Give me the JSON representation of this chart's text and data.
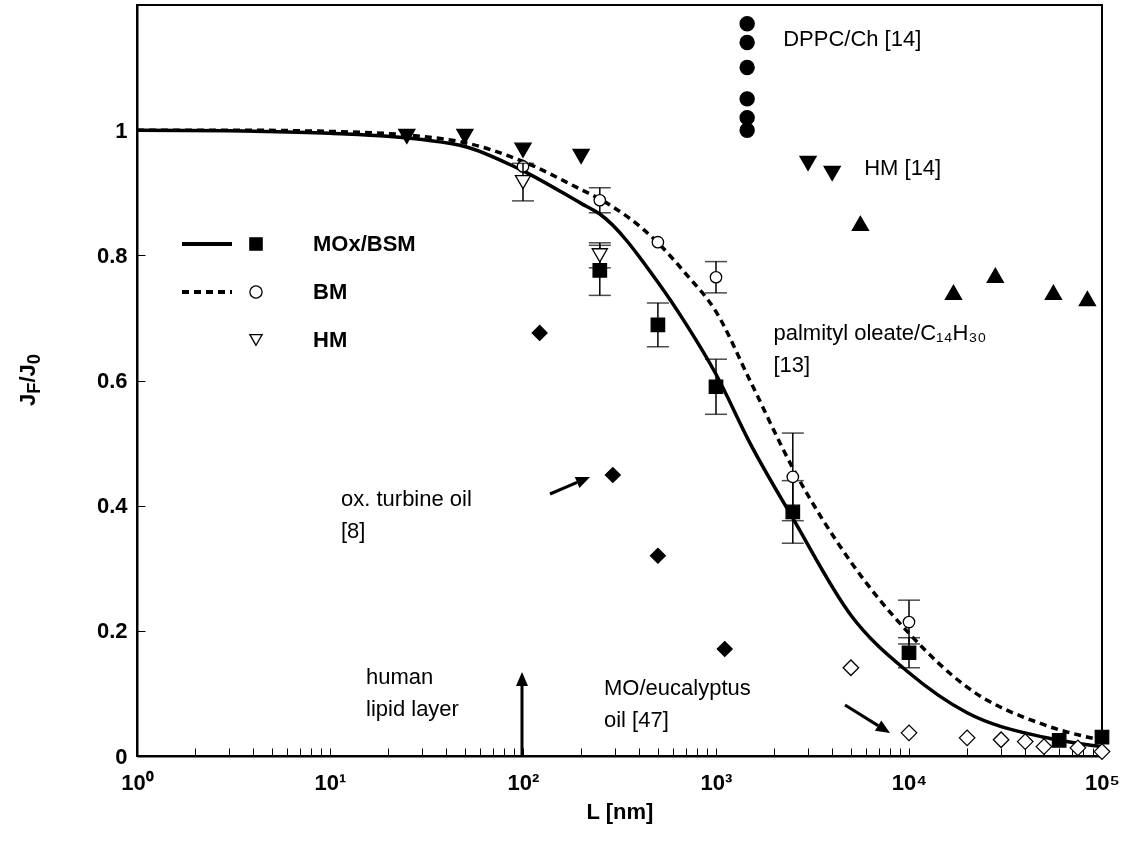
{
  "chart_data": {
    "type": "scatter",
    "xlabel": "L [nm]",
    "ylabel": "J$_{F}$/J$_{0}$",
    "log": "x",
    "xlim": [
      1,
      100000
    ],
    "ylim": [
      0,
      1.2
    ],
    "xticks": [
      {
        "value": 1,
        "label": "10⁰"
      },
      {
        "value": 2,
        "label": null
      },
      {
        "value": 3,
        "label": null
      },
      {
        "value": 4,
        "label": null
      },
      {
        "value": 5,
        "label": null
      },
      {
        "value": 6,
        "label": null
      },
      {
        "value": 7,
        "label": null
      },
      {
        "value": 8,
        "label": null
      },
      {
        "value": 9,
        "label": null
      },
      {
        "value": 10,
        "label": "10¹"
      },
      {
        "value": 20,
        "label": null
      },
      {
        "value": 30,
        "label": null
      },
      {
        "value": 40,
        "label": null
      },
      {
        "value": 50,
        "label": null
      },
      {
        "value": 60,
        "label": null
      },
      {
        "value": 70,
        "label": null
      },
      {
        "value": 80,
        "label": null
      },
      {
        "value": 90,
        "label": null
      },
      {
        "value": 100,
        "label": "10²"
      },
      {
        "value": 200,
        "label": null
      },
      {
        "value": 300,
        "label": null
      },
      {
        "value": 400,
        "label": null
      },
      {
        "value": 500,
        "label": null
      },
      {
        "value": 600,
        "label": null
      },
      {
        "value": 700,
        "label": null
      },
      {
        "value": 800,
        "label": null
      },
      {
        "value": 900,
        "label": null
      },
      {
        "value": 1000,
        "label": "10³"
      },
      {
        "value": 2000,
        "label": null
      },
      {
        "value": 3000,
        "label": null
      },
      {
        "value": 4000,
        "label": null
      },
      {
        "value": 5000,
        "label": null
      },
      {
        "value": 6000,
        "label": null
      },
      {
        "value": 7000,
        "label": null
      },
      {
        "value": 8000,
        "label": null
      },
      {
        "value": 9000,
        "label": null
      },
      {
        "value": 10000,
        "label": "10⁴"
      },
      {
        "value": 20000,
        "label": null
      },
      {
        "value": 30000,
        "label": null
      },
      {
        "value": 40000,
        "label": null
      },
      {
        "value": 50000,
        "label": null
      },
      {
        "value": 60000,
        "label": null
      },
      {
        "value": 70000,
        "label": null
      },
      {
        "value": 80000,
        "label": null
      },
      {
        "value": 90000,
        "label": null
      },
      {
        "value": 100000,
        "label": "10⁵"
      }
    ],
    "yticks": [
      0,
      0.2,
      0.4,
      0.6,
      0.8,
      1
    ],
    "grid": false,
    "legend": "top left",
    "series": [
      {
        "type": "line",
        "line_style": "solid",
        "color": "#000000",
        "x": [
          1,
          3,
          10,
          30,
          50,
          100,
          200,
          250,
          500,
          700,
          1000,
          1500,
          2500,
          5000,
          10000,
          20000,
          50000,
          100000
        ],
        "values": [
          1,
          0.999,
          0.995,
          0.985,
          0.974,
          0.935,
          0.883,
          0.866,
          0.757,
          0.69,
          0.61,
          0.5,
          0.38,
          0.225,
          0.133,
          0.069,
          0.03,
          0.015
        ]
      },
      {
        "type": "line",
        "line_style": "dashed",
        "color": "#000000",
        "x": [
          1,
          3,
          10,
          30,
          50,
          100,
          200,
          250,
          500,
          700,
          1000,
          1500,
          2500,
          5000,
          10000,
          20000,
          50000,
          100000
        ],
        "values": [
          1,
          1,
          0.998,
          0.99,
          0.98,
          0.95,
          0.905,
          0.89,
          0.82,
          0.77,
          0.71,
          0.6,
          0.46,
          0.31,
          0.196,
          0.11,
          0.05,
          0.025
        ]
      },
      {
        "name": "MOx/BSM",
        "marker": "square",
        "color": "#000000",
        "x": [
          250,
          500,
          1000,
          2500,
          10000,
          60000,
          100000
        ],
        "values": [
          0.776,
          0.689,
          0.59,
          0.39,
          0.165,
          0.025,
          0.03
        ],
        "errors": [
          0.04,
          0.035,
          0.044,
          0.05,
          0.024,
          null,
          null
        ]
      },
      {
        "name": "BM",
        "marker": "circle-open",
        "color": "#000000",
        "x": [
          100,
          250,
          500,
          1000,
          2500,
          10000
        ],
        "values": [
          0.942,
          0.888,
          0.821,
          0.765,
          0.446,
          0.214
        ],
        "errors": [
          null,
          0.02,
          null,
          0.025,
          0.07,
          0.035
        ]
      },
      {
        "name": "HM",
        "marker": "triangle-down-open",
        "color": "#000000",
        "x": [
          100,
          250
        ],
        "values": [
          0.917,
          0.8
        ],
        "errors": [
          0.03,
          0.02
        ]
      },
      {
        "marker": "circle",
        "color": "#000000",
        "x": [
          1450,
          1450,
          1450,
          1450,
          1450,
          1450
        ],
        "values": [
          1.17,
          1.14,
          1.1,
          1.05,
          1.02,
          1.0
        ]
      },
      {
        "marker": "triangle-down",
        "color": "#000000",
        "x": [
          25,
          50,
          100,
          200,
          3000,
          4000
        ],
        "values": [
          0.99,
          0.99,
          0.968,
          0.958,
          0.947,
          0.931
        ]
      },
      {
        "marker": "triangle",
        "color": "#000000",
        "x": [
          5600,
          17000,
          28000,
          56000,
          84000
        ],
        "values": [
          0.851,
          0.741,
          0.768,
          0.741,
          0.731
        ]
      },
      {
        "marker": "diamond",
        "color": "#000000",
        "x": [
          122,
          292,
          500,
          1110
        ],
        "values": [
          0.676,
          0.449,
          0.32,
          0.171
        ]
      },
      {
        "marker": "diamond-open",
        "color": "#000000",
        "x": [
          5000,
          10000,
          20000,
          30000,
          40000,
          50000,
          75000,
          100000
        ],
        "values": [
          0.141,
          0.037,
          0.029,
          0.026,
          0.023,
          0.015,
          0.013,
          0.007
        ]
      }
    ],
    "annotations": [
      {
        "text": "DPPC/Ch [14]",
        "x": 1450,
        "y": 1.17
      },
      {
        "text": "HM [14]",
        "x": 4000,
        "y": 0.931
      },
      {
        "text": "palmityl oleate/C₁₄H₃₀\n[13]",
        "x": 17000,
        "y": 0.741
      },
      "ox. turbine oil\n[8]",
      "human\nlipid layer",
      "MO/eucalyptus\noil [47]"
    ]
  }
}
